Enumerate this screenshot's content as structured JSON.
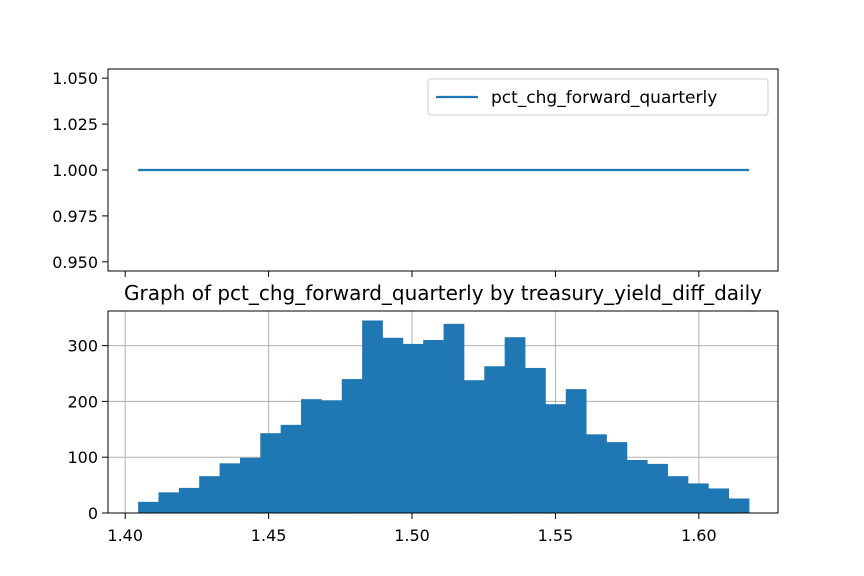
{
  "chart_data": [
    {
      "type": "line",
      "title": "",
      "xlabel": "",
      "ylabel": "",
      "ylim": [
        0.945,
        1.055
      ],
      "xlim": [
        1.394,
        1.6276
      ],
      "y_ticks": [
        "0.950",
        "0.975",
        "1.000",
        "1.025",
        "1.050"
      ],
      "y_tick_values": [
        0.95,
        0.975,
        1.0,
        1.025,
        1.05
      ],
      "x_tick_values": [
        1.4,
        1.45,
        1.5,
        1.55,
        1.6
      ],
      "x_tick_labels_visible": false,
      "grid": false,
      "legend": {
        "location": "upper right",
        "entries": [
          "pct_chg_forward_quarterly"
        ]
      },
      "series": [
        {
          "name": "pct_chg_forward_quarterly",
          "color": "#1f77b4",
          "x": [
            1.4045,
            1.6175
          ],
          "y": [
            1.0,
            1.0
          ]
        }
      ]
    },
    {
      "type": "bar",
      "subtype": "histogram",
      "title": "Graph of pct_chg_forward_quarterly by treasury_yield_diff_daily",
      "xlabel": "",
      "ylabel": "",
      "xlim": [
        1.394,
        1.6276
      ],
      "ylim": [
        0,
        362
      ],
      "x_ticks": [
        "1.40",
        "1.45",
        "1.50",
        "1.55",
        "1.60"
      ],
      "x_tick_values": [
        1.4,
        1.45,
        1.5,
        1.55,
        1.6
      ],
      "y_ticks": [
        "0",
        "100",
        "200",
        "300"
      ],
      "y_tick_values": [
        0,
        100,
        200,
        300
      ],
      "grid": true,
      "color": "#1f77b4",
      "bin_start": 1.4045,
      "bin_width": 0.0071,
      "values": [
        20,
        37,
        45,
        66,
        89,
        99,
        143,
        158,
        204,
        202,
        240,
        345,
        314,
        303,
        310,
        339,
        238,
        263,
        315,
        260,
        195,
        222,
        141,
        127,
        95,
        88,
        66,
        53,
        44,
        26
      ]
    }
  ]
}
